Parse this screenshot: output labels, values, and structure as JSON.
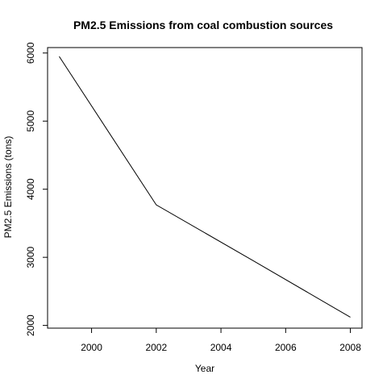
{
  "chart_data": {
    "type": "line",
    "title": "PM2.5 Emissions from coal combustion sources",
    "xlabel": "Year",
    "ylabel": "PM2.5 Emissions (tons)",
    "x": [
      1999,
      2002,
      2005,
      2008
    ],
    "series": [
      {
        "values": [
          5950,
          3770,
          2950,
          2120
        ],
        "color": "#000000"
      }
    ],
    "xlim": [
      1999,
      2008
    ],
    "ylim": [
      2000,
      6000
    ],
    "xticks": [
      2000,
      2002,
      2004,
      2006,
      2008
    ],
    "yticks": [
      2000,
      3000,
      4000,
      5000,
      6000
    ],
    "xtick_labels": [
      "2000",
      "2002",
      "2004",
      "2006",
      "2008"
    ],
    "ytick_labels": [
      "2000",
      "3000",
      "4000",
      "5000",
      "6000"
    ],
    "grid": false,
    "legend": "none"
  }
}
